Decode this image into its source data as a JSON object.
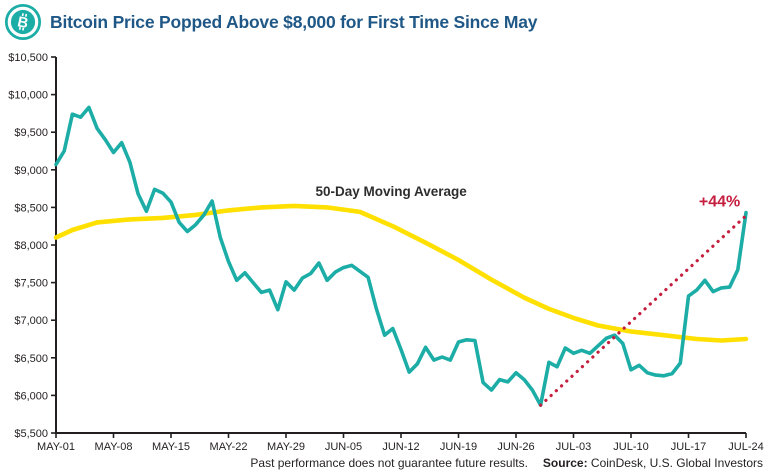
{
  "header": {
    "title": "Bitcoin Price Popped Above $8,000 for First Time Since May",
    "icon": "bitcoin-icon"
  },
  "colors": {
    "title": "#1f5886",
    "axis": "#231f20",
    "price_line": "#1cada7",
    "ma_line": "#ffe000",
    "trend": "#c51f3f"
  },
  "chart_data": {
    "type": "line",
    "title": "Bitcoin Price Popped Above $8,000 for First Time Since May",
    "xlabel": "",
    "ylabel": "",
    "ylim": [
      5500,
      10500
    ],
    "grid": false,
    "legend_position": "none",
    "x_tick_labels": [
      "MAY-01",
      "MAY-08",
      "MAY-15",
      "MAY-22",
      "MAY-29",
      "JUN-05",
      "JUN-12",
      "JUN-19",
      "JUN-26",
      "JUL-03",
      "JUL-10",
      "JUL-17",
      "JUL-24"
    ],
    "x_tick_days": [
      0,
      7,
      14,
      21,
      28,
      35,
      42,
      49,
      56,
      63,
      70,
      77,
      84
    ],
    "y_ticks": [
      {
        "value": 10500,
        "label": "$10,500"
      },
      {
        "value": 10000,
        "label": "$10,000"
      },
      {
        "value": 9500,
        "label": "$9,500"
      },
      {
        "value": 9000,
        "label": "$9,000"
      },
      {
        "value": 8500,
        "label": "$8,500"
      },
      {
        "value": 8000,
        "label": "$8,000"
      },
      {
        "value": 7500,
        "label": "$7,500"
      },
      {
        "value": 7000,
        "label": "$7,000"
      },
      {
        "value": 6500,
        "label": "$6,500"
      },
      {
        "value": 6000,
        "label": "$6,000"
      },
      {
        "value": 5500,
        "label": "$5,500"
      }
    ],
    "series": [
      {
        "name": "Bitcoin Price",
        "color": "#1cada7",
        "values": [
          9070,
          9250,
          9740,
          9700,
          9830,
          9550,
          9400,
          9230,
          9360,
          9100,
          8680,
          8450,
          8740,
          8690,
          8570,
          8300,
          8180,
          8270,
          8400,
          8585,
          8100,
          7780,
          7530,
          7630,
          7500,
          7370,
          7400,
          7140,
          7510,
          7400,
          7560,
          7620,
          7760,
          7530,
          7640,
          7700,
          7730,
          7650,
          7570,
          7150,
          6800,
          6890,
          6610,
          6310,
          6420,
          6640,
          6470,
          6510,
          6470,
          6710,
          6740,
          6730,
          6170,
          6070,
          6210,
          6180,
          6300,
          6210,
          6070,
          5870,
          6440,
          6380,
          6630,
          6560,
          6600,
          6560,
          6660,
          6760,
          6800,
          6690,
          6340,
          6400,
          6300,
          6270,
          6260,
          6290,
          6430,
          7320,
          7400,
          7530,
          7380,
          7430,
          7440,
          7670,
          8430
        ]
      },
      {
        "name": "50-Day Moving Average",
        "color": "#ffe000",
        "days": [
          0,
          2,
          5,
          9,
          13,
          17,
          21,
          25,
          29,
          33,
          37,
          41,
          45,
          49,
          53,
          57,
          60,
          63,
          66,
          70,
          74,
          78,
          81,
          84
        ],
        "values": [
          8100,
          8200,
          8300,
          8340,
          8360,
          8400,
          8460,
          8500,
          8520,
          8500,
          8440,
          8250,
          8030,
          7800,
          7540,
          7300,
          7150,
          7030,
          6930,
          6850,
          6800,
          6750,
          6730,
          6750
        ]
      }
    ],
    "ma_label": {
      "text": "50-Day Moving Average",
      "day": 40.8,
      "value": 8650
    },
    "trend": {
      "label": "+44%",
      "color": "#c51f3f",
      "from_day": 59,
      "from_value": 5870,
      "to_day": 84,
      "to_value": 8390,
      "label_day": 83.3,
      "label_value": 8510
    }
  },
  "footer": {
    "disclaimer": "Past performance does not guarantee future results.",
    "source_label": "Source:",
    "source_text": " CoinDesk, U.S. Global Investors"
  }
}
